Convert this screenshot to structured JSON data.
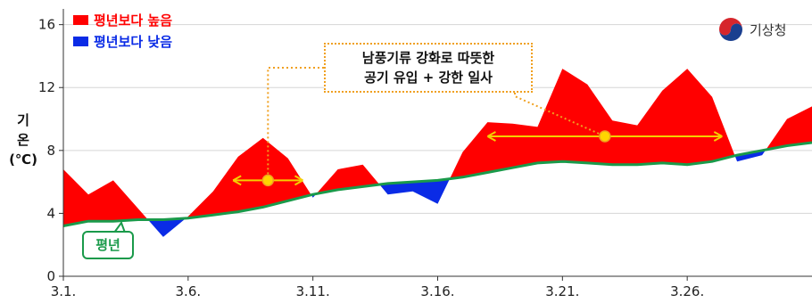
{
  "chart_data": {
    "type": "area",
    "ylabel_lines": [
      "기",
      "온",
      "(℃)"
    ],
    "ylim": [
      0,
      17
    ],
    "yticks": [
      0,
      4,
      8,
      12,
      16
    ],
    "xlim": [
      1,
      31
    ],
    "xticks": [
      {
        "day": 1,
        "label": "3.1."
      },
      {
        "day": 6,
        "label": "3.6."
      },
      {
        "day": 11,
        "label": "3.11."
      },
      {
        "day": 16,
        "label": "3.16."
      },
      {
        "day": 21,
        "label": "3.21."
      },
      {
        "day": 26,
        "label": "3.26."
      }
    ],
    "legend": [
      {
        "label": "평년보다 높음",
        "color": "#ff0000"
      },
      {
        "label": "평년보다 낮음",
        "color": "#0a2be6"
      }
    ],
    "normal_label": "평년",
    "annotation_lines": [
      "남풍기류 강화로 따뜻한",
      "공기 유입 + 강한 일사"
    ],
    "days": [
      1,
      2,
      3,
      4,
      5,
      6,
      7,
      8,
      9,
      10,
      11,
      12,
      13,
      14,
      15,
      16,
      17,
      18,
      19,
      20,
      21,
      22,
      23,
      24,
      25,
      26,
      27,
      28,
      29,
      30,
      31
    ],
    "series": [
      {
        "name": "기온",
        "color": "#ff0000",
        "values": [
          6.8,
          5.2,
          6.1,
          4.3,
          2.5,
          3.8,
          5.4,
          7.6,
          8.8,
          7.5,
          5.0,
          6.8,
          7.1,
          5.2,
          5.4,
          4.6,
          7.9,
          9.8,
          9.7,
          9.5,
          13.2,
          12.2,
          9.9,
          9.6,
          11.8,
          13.2,
          11.4,
          7.3,
          7.7,
          10.0,
          10.8
        ]
      },
      {
        "name": "평년",
        "color": "#1a9a4a",
        "values": [
          3.2,
          3.5,
          3.5,
          3.6,
          3.6,
          3.7,
          3.9,
          4.1,
          4.4,
          4.8,
          5.2,
          5.5,
          5.7,
          5.9,
          6.0,
          6.1,
          6.3,
          6.6,
          6.9,
          7.2,
          7.3,
          7.2,
          7.1,
          7.1,
          7.2,
          7.1,
          7.3,
          7.7,
          8.0,
          8.3,
          8.5
        ]
      }
    ],
    "arrows": [
      {
        "from": 7.8,
        "to": 10.6,
        "y": 6.1
      },
      {
        "from": 18.0,
        "to": 27.4,
        "y": 8.9
      }
    ]
  },
  "logo": {
    "text": "기상청",
    "icon": "kma-logo-icon"
  },
  "colors": {
    "above": "#ff0000",
    "below": "#0a2be6",
    "normal": "#1a9a4a",
    "annotation": "#f0a020",
    "arrow": "#f5d000"
  }
}
